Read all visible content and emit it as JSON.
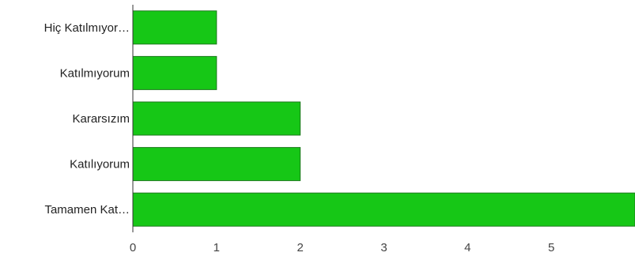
{
  "chart_data": {
    "type": "bar",
    "orientation": "horizontal",
    "categories": [
      "Hiç Katılmıyor…",
      "Katılmıyorum",
      "Kararsızım",
      "Katılıyorum",
      "Tamamen Kat…"
    ],
    "values": [
      1,
      1,
      2,
      2,
      6
    ],
    "x_ticks": [
      "0",
      "1",
      "2",
      "3",
      "4",
      "5"
    ],
    "xlim": [
      0,
      6
    ],
    "title": "",
    "xlabel": "",
    "ylabel": "",
    "grid": false,
    "legend": "none",
    "bar_color": "#16c716"
  }
}
